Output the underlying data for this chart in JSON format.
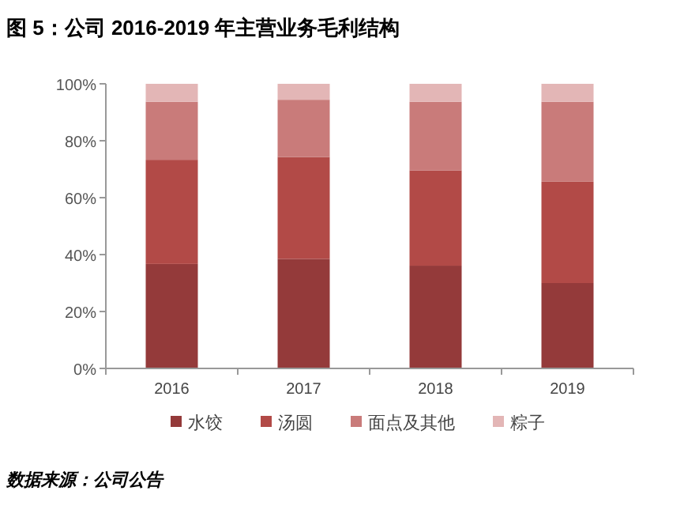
{
  "chart_data": {
    "type": "bar",
    "title": "图 5：公司 2016-2019 年主营业务毛利结构",
    "stacked": true,
    "categories": [
      "2016",
      "2017",
      "2018",
      "2019"
    ],
    "series": [
      {
        "name": "水饺",
        "color": "#943a3a",
        "values": [
          36.7,
          38.5,
          36.1,
          30.0
        ]
      },
      {
        "name": "汤圆",
        "color": "#b24a47",
        "values": [
          36.6,
          35.8,
          33.5,
          35.6
        ]
      },
      {
        "name": "面点及其他",
        "color": "#c97b7a",
        "values": [
          20.4,
          20.1,
          24.1,
          28.1
        ]
      },
      {
        "name": "粽子",
        "color": "#e3b6b6",
        "values": [
          6.3,
          5.6,
          6.3,
          6.3
        ]
      }
    ],
    "ylim": [
      0,
      100
    ],
    "yticks": [
      {
        "value": 0,
        "label": "0%"
      },
      {
        "value": 20,
        "label": "20%"
      },
      {
        "value": 40,
        "label": "40%"
      },
      {
        "value": 60,
        "label": "60%"
      },
      {
        "value": 80,
        "label": "80%"
      },
      {
        "value": 100,
        "label": "100%"
      }
    ],
    "grid": false,
    "legend": "bottom",
    "annotations": [
      "数据来源：公司公告"
    ]
  }
}
